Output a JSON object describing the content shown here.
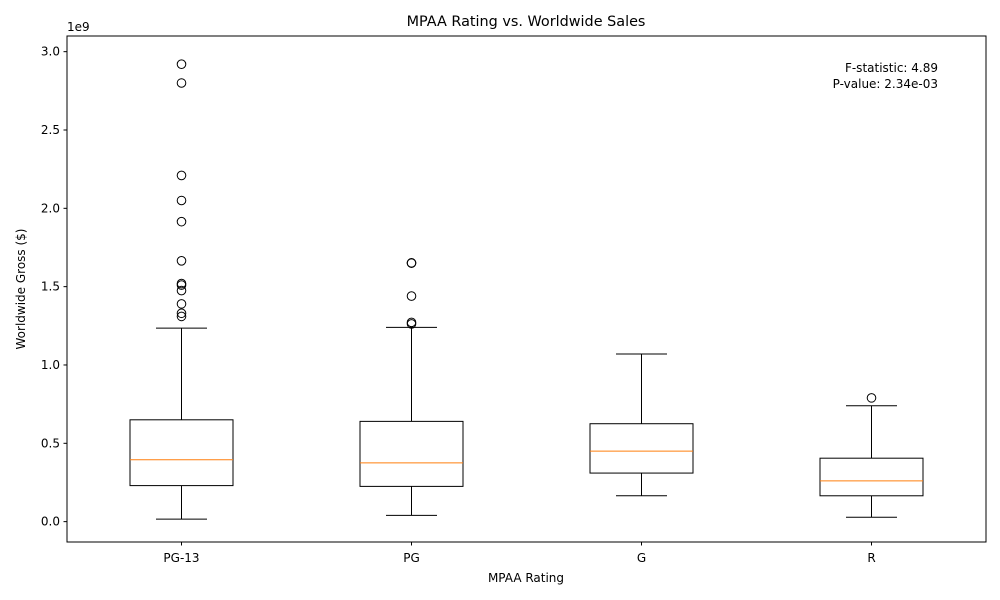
{
  "chart_data": {
    "type": "box",
    "title": "MPAA Rating vs. Worldwide Sales",
    "xlabel": "MPAA Rating",
    "ylabel": "Worldwide Gross ($)",
    "y_offset_label": "1e9",
    "y_multiplier": 1000000000,
    "ylim": [
      -0.13,
      3.1
    ],
    "yticks": [
      0.0,
      0.5,
      1.0,
      1.5,
      2.0,
      2.5,
      3.0
    ],
    "ytick_labels": [
      "0.0",
      "0.5",
      "1.0",
      "1.5",
      "2.0",
      "2.5",
      "3.0"
    ],
    "categories": [
      "PG-13",
      "PG",
      "G",
      "R"
    ],
    "boxes": [
      {
        "category": "PG-13",
        "whisker_low": 0.016,
        "q1": 0.23,
        "median": 0.395,
        "q3": 0.65,
        "whisker_high": 1.235,
        "outliers": [
          1.31,
          1.33,
          1.39,
          1.475,
          1.51,
          1.52,
          1.665,
          1.915,
          2.05,
          2.21,
          2.8,
          2.92
        ]
      },
      {
        "category": "PG",
        "whisker_low": 0.04,
        "q1": 0.225,
        "median": 0.375,
        "q3": 0.64,
        "whisker_high": 1.24,
        "outliers": [
          1.262,
          1.272,
          1.44,
          1.65,
          1.652
        ]
      },
      {
        "category": "G",
        "whisker_low": 0.165,
        "q1": 0.31,
        "median": 0.45,
        "q3": 0.625,
        "whisker_high": 1.07,
        "outliers": []
      },
      {
        "category": "R",
        "whisker_low": 0.028,
        "q1": 0.165,
        "median": 0.26,
        "q3": 0.405,
        "whisker_high": 0.74,
        "outliers": [
          0.79
        ]
      }
    ],
    "annotations": [
      "F-statistic: 4.89",
      "P-value: 2.34e-03"
    ],
    "annotation_position": "top-right",
    "median_color": "#ff7f0e",
    "box_color": "#000000",
    "grid": false,
    "legend": false
  }
}
